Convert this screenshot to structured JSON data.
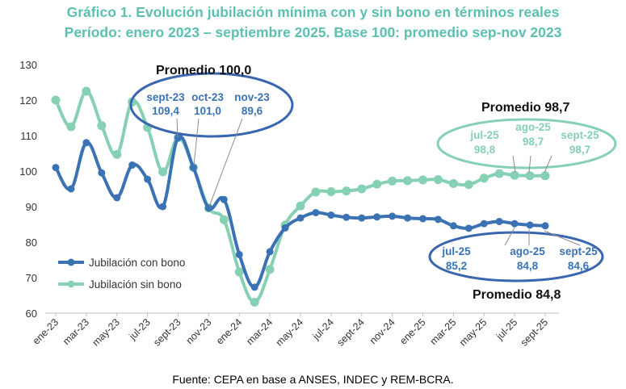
{
  "chart_data": {
    "type": "line",
    "title": "Gráfico 1. Evolución jubilación mínima con y sin bono en términos reales",
    "subtitle": "Período: enero 2023 – septiembre 2025. Base 100: promedio sep-nov 2023",
    "source": "Fuente: CEPA en base a ANSES, INDEC y REM-BCRA.",
    "ylim": [
      60,
      130
    ],
    "yticks": [
      "60",
      "70",
      "80",
      "90",
      "100",
      "110",
      "120",
      "130"
    ],
    "x": [
      "ene-23",
      "feb-23",
      "mar-23",
      "abr-23",
      "may-23",
      "jun-23",
      "jul-23",
      "ago-23",
      "sept-23",
      "oct-23",
      "nov-23",
      "dic-23",
      "ene-24",
      "feb-24",
      "mar-24",
      "abr-24",
      "may-24",
      "jun-24",
      "jul-24",
      "ago-24",
      "sept-24",
      "oct-24",
      "nov-24",
      "dic-24",
      "ene-25",
      "feb-25",
      "mar-25",
      "abr-25",
      "may-25",
      "jun-25",
      "jul-25",
      "ago-25",
      "sept-25"
    ],
    "xtick_labels": [
      "ene-23",
      "mar-23",
      "may-23",
      "jul-23",
      "sept-23",
      "nov-23",
      "ene-24",
      "mar-24",
      "may-24",
      "jul-24",
      "sept-24",
      "nov-24",
      "ene-25",
      "mar-25",
      "may-25",
      "jul-25",
      "sept-25"
    ],
    "legend_position": "bottom-left",
    "grid": false,
    "series": [
      {
        "name": "Jubilación con bono",
        "color": "#3a72b4",
        "values": [
          101,
          95,
          108,
          99.5,
          92.5,
          101.7,
          97.7,
          90,
          109.4,
          101,
          89.6,
          92,
          76.5,
          67.3,
          77.3,
          84,
          86.8,
          88.3,
          87.6,
          87,
          86.8,
          87.1,
          87.3,
          86.8,
          86.6,
          86.4,
          84.6,
          83.9,
          85.2,
          85.8,
          85.2,
          84.8,
          84.6
        ]
      },
      {
        "name": "Jubilación sin bono",
        "color": "#86d0b4",
        "values": [
          120,
          112.5,
          122.5,
          112.8,
          104.7,
          119.5,
          112.3,
          99.8,
          109.4,
          101,
          89.6,
          86.3,
          71.6,
          63.1,
          72.3,
          84.8,
          90.2,
          94.1,
          94.2,
          94.4,
          95,
          96.3,
          97.2,
          97.3,
          97.5,
          97.6,
          96.5,
          96.2,
          98,
          99.3,
          98.8,
          98.7,
          98.7
        ]
      }
    ],
    "annotations": {
      "prom_100": "Promedio 100,0",
      "prom_987": "Promedio 98,7",
      "prom_848": "Promedio 84,8",
      "sep23_label": "sept-23",
      "sep23_value": "109,4",
      "oct23_label": "oct-23",
      "oct23_value": "101,0",
      "nov23_label": "nov-23",
      "nov23_value": "89,6",
      "jul25s_label": "jul-25",
      "jul25s_value": "98,8",
      "ago25s_label": "ago-25",
      "ago25s_value": "98,7",
      "sep25s_label": "sept-25",
      "sep25s_value": "98,7",
      "jul25c_label": "jul-25",
      "jul25c_value": "85,2",
      "ago25c_label": "ago-25",
      "ago25c_value": "84,8",
      "sep25c_label": "sept-25",
      "sep25c_value": "84,6"
    }
  }
}
